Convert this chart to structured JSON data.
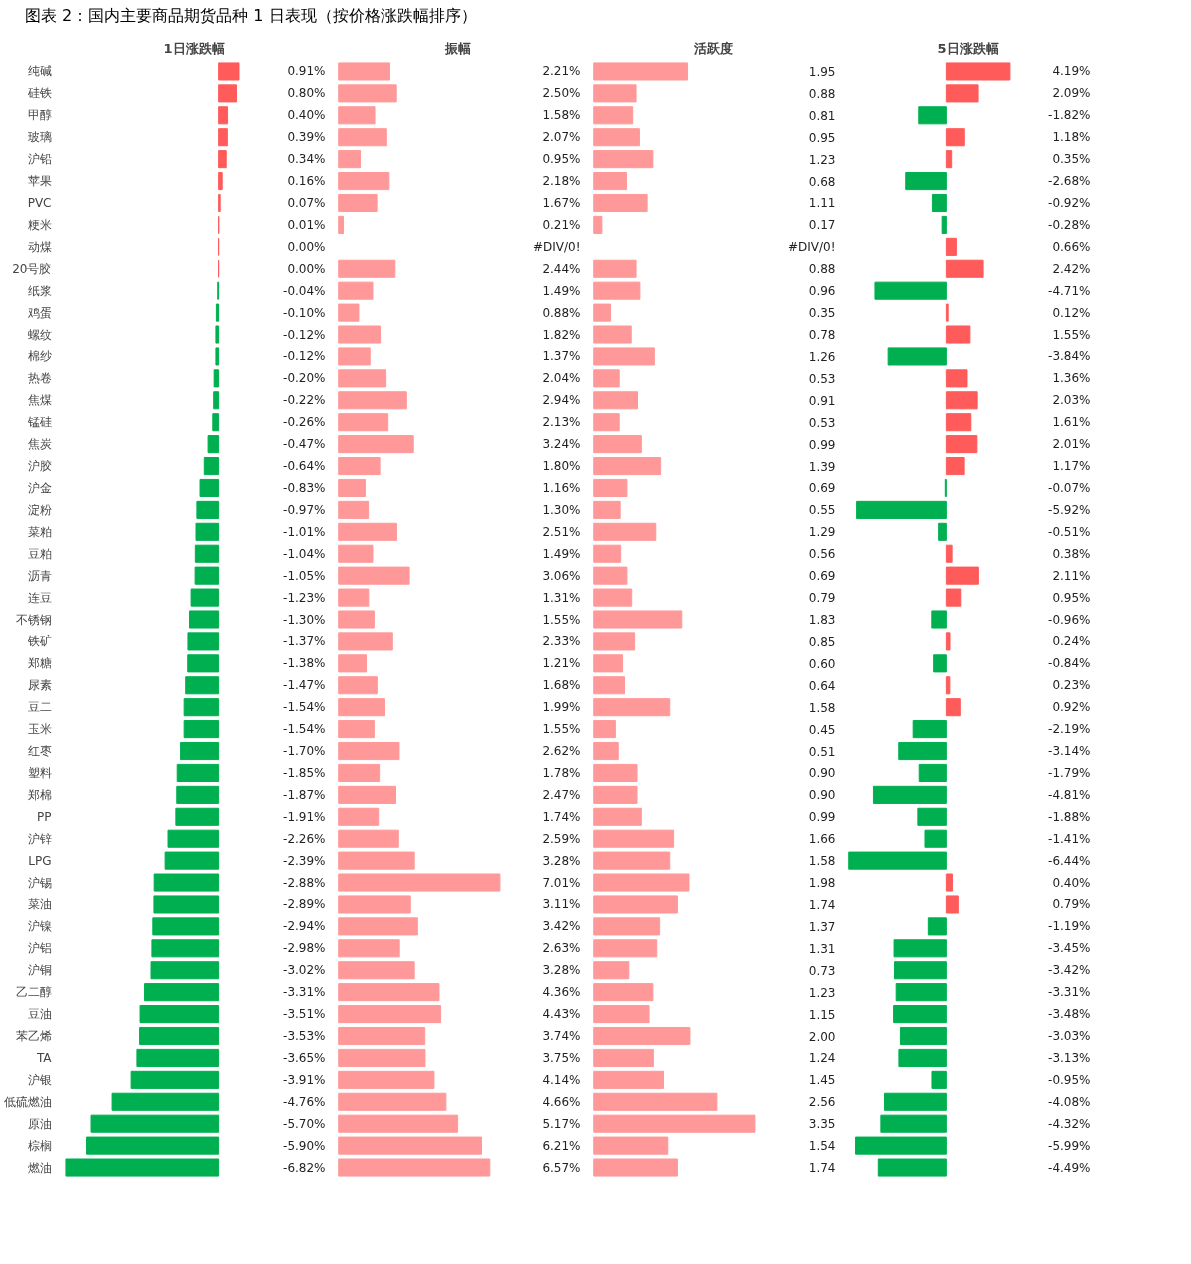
{
  "chart_data": [
    {
      "type": "bar",
      "orientation": "horizontal",
      "tick_labels": "y",
      "title": "图表 2：国内主要商品期货品种 1 日表现（按价格涨跌幅排序）",
      "subtitle": "1日涨跌幅",
      "categories": [
        "纯碱",
        "硅铁",
        "甲醇",
        "玻璃",
        "沪铅",
        "苹果",
        "PVC",
        "粳米",
        "动煤",
        "20号胶",
        "纸浆",
        "鸡蛋",
        "螺纹",
        "棉纱",
        "热卷",
        "焦煤",
        "锰硅",
        "焦炭",
        "沪胶",
        "沪金",
        "淀粉",
        "菜粕",
        "豆粕",
        "沥青",
        "连豆",
        "不锈钢",
        "铁矿",
        "郑糖",
        "尿素",
        "豆二",
        "玉米",
        "红枣",
        "塑料",
        "郑棉",
        "PP",
        "沪锌",
        "LPG",
        "沪锡",
        "菜油",
        "沪镍",
        "沪铝",
        "沪铜",
        "乙二醇",
        "豆油",
        "苯乙烯",
        "TA",
        "沪银",
        "低硫燃油",
        "原油",
        "棕榈",
        "燃油"
      ],
      "values": [
        0.91,
        0.8,
        0.4,
        0.39,
        0.34,
        0.16,
        0.07,
        0.01,
        0.0,
        0.0,
        -0.04,
        -0.1,
        -0.12,
        -0.12,
        -0.2,
        -0.22,
        -0.26,
        -0.47,
        -0.64,
        -0.83,
        -0.97,
        -1.01,
        -1.04,
        -1.05,
        -1.23,
        -1.3,
        -1.37,
        -1.38,
        -1.47,
        -1.54,
        -1.54,
        -1.7,
        -1.85,
        -1.87,
        -1.91,
        -2.26,
        -2.39,
        -2.88,
        -2.89,
        -2.94,
        -2.98,
        -3.02,
        -3.31,
        -3.51,
        -3.53,
        -3.65,
        -3.91,
        -4.76,
        -5.7,
        -5.9,
        -6.82
      ],
      "value_labels": [
        "0.91%",
        "0.80%",
        "0.40%",
        "0.39%",
        "0.34%",
        "0.16%",
        "0.07%",
        "0.01%",
        "0.00%",
        "0.00%",
        "-0.04%",
        "-0.10%",
        "-0.12%",
        "-0.12%",
        "-0.20%",
        "-0.22%",
        "-0.26%",
        "-0.47%",
        "-0.64%",
        "-0.83%",
        "-0.97%",
        "-1.01%",
        "-1.04%",
        "-1.05%",
        "-1.23%",
        "-1.30%",
        "-1.37%",
        "-1.38%",
        "-1.47%",
        "-1.54%",
        "-1.54%",
        "-1.70%",
        "-1.85%",
        "-1.87%",
        "-1.91%",
        "-2.26%",
        "-2.39%",
        "-2.88%",
        "-2.89%",
        "-2.94%",
        "-2.98%",
        "-3.02%",
        "-3.31%",
        "-3.51%",
        "-3.53%",
        "-3.65%",
        "-3.91%",
        "-4.76%",
        "-5.70%",
        "-5.90%",
        "-6.82%"
      ],
      "colors": [
        "#ff5b5b",
        "#ff5b5b",
        "#ff5b5b",
        "#ff5b5b",
        "#ff5b5b",
        "#ff5b5b",
        "#ff5b5b",
        "#ff5b5b",
        "#ff5b5b",
        "#ff5b5b",
        "#00b050",
        "#00b050",
        "#00b050",
        "#00b050",
        "#00b050",
        "#00b050",
        "#00b050",
        "#00b050",
        "#00b050",
        "#00b050",
        "#00b050",
        "#00b050",
        "#00b050",
        "#00b050",
        "#00b050",
        "#00b050",
        "#00b050",
        "#00b050",
        "#00b050",
        "#00b050",
        "#00b050",
        "#00b050",
        "#00b050",
        "#00b050",
        "#00b050",
        "#00b050",
        "#00b050",
        "#00b050",
        "#00b050",
        "#00b050",
        "#00b050",
        "#00b050",
        "#00b050",
        "#00b050",
        "#00b050",
        "#00b050",
        "#00b050",
        "#00b050",
        "#00b050",
        "#00b050",
        "#00b050"
      ]
    },
    {
      "type": "bar",
      "orientation": "horizontal",
      "tick_labels": false,
      "title": "振幅",
      "color": "#ff9999",
      "categories": [
        null,
        null,
        null,
        null,
        null,
        null,
        null,
        null,
        null,
        null,
        null,
        null,
        null,
        null,
        null,
        null,
        null,
        null,
        null,
        null,
        null,
        null,
        null,
        null,
        null,
        null,
        null,
        null,
        null,
        null,
        null,
        null,
        null,
        null,
        null,
        null,
        null,
        null,
        null,
        null,
        null,
        null,
        null,
        null,
        null,
        null,
        null,
        null,
        null,
        null,
        null
      ],
      "values": [
        2.21,
        2.5,
        1.58,
        2.07,
        0.95,
        2.18,
        1.67,
        0.21,
        null,
        2.44,
        1.49,
        0.88,
        1.82,
        1.37,
        2.04,
        2.94,
        2.13,
        3.24,
        1.8,
        1.16,
        1.3,
        2.51,
        1.49,
        3.06,
        1.31,
        1.55,
        2.33,
        1.21,
        1.68,
        1.99,
        1.55,
        2.62,
        1.78,
        2.47,
        1.74,
        2.59,
        3.28,
        7.01,
        3.11,
        3.42,
        2.63,
        3.28,
        4.36,
        4.43,
        3.74,
        3.75,
        4.14,
        4.66,
        5.17,
        6.21,
        6.57
      ],
      "value_labels": [
        "2.21%",
        "2.50%",
        "1.58%",
        "2.07%",
        "0.95%",
        "2.18%",
        "1.67%",
        "0.21%",
        "#DIV/0!",
        "2.44%",
        "1.49%",
        "0.88%",
        "1.82%",
        "1.37%",
        "2.04%",
        "2.94%",
        "2.13%",
        "3.24%",
        "1.80%",
        "1.16%",
        "1.30%",
        "2.51%",
        "1.49%",
        "3.06%",
        "1.31%",
        "1.55%",
        "2.33%",
        "1.21%",
        "1.68%",
        "1.99%",
        "1.55%",
        "2.62%",
        "1.78%",
        "2.47%",
        "1.74%",
        "2.59%",
        "3.28%",
        "7.01%",
        "3.11%",
        "3.42%",
        "2.63%",
        "3.28%",
        "4.36%",
        "4.43%",
        "3.74%",
        "3.75%",
        "4.14%",
        "4.66%",
        "5.17%",
        "6.21%",
        "6.57%"
      ]
    },
    {
      "type": "bar",
      "orientation": "horizontal",
      "tick_labels": false,
      "title": "活跃度",
      "color": "#ff9999",
      "categories": [
        null,
        null,
        null,
        null,
        null,
        null,
        null,
        null,
        null,
        null,
        null,
        null,
        null,
        null,
        null,
        null,
        null,
        null,
        null,
        null,
        null,
        null,
        null,
        null,
        null,
        null,
        null,
        null,
        null,
        null,
        null,
        null,
        null,
        null,
        null,
        null,
        null,
        null,
        null,
        null,
        null,
        null,
        null,
        null,
        null,
        null,
        null,
        null,
        null,
        null,
        null
      ],
      "values": [
        1.95,
        0.88,
        0.81,
        0.95,
        1.23,
        0.68,
        1.11,
        0.17,
        null,
        0.88,
        0.96,
        0.35,
        0.78,
        1.26,
        0.53,
        0.91,
        0.53,
        0.99,
        1.39,
        0.69,
        0.55,
        1.29,
        0.56,
        0.69,
        0.79,
        1.83,
        0.85,
        0.6,
        0.64,
        1.58,
        0.45,
        0.51,
        0.9,
        0.9,
        0.99,
        1.66,
        1.58,
        1.98,
        1.74,
        1.37,
        1.31,
        0.73,
        1.23,
        1.15,
        2.0,
        1.24,
        1.45,
        2.56,
        3.35,
        1.54,
        1.74
      ],
      "value_labels": [
        "1.95",
        "0.88",
        "0.81",
        "0.95",
        "1.23",
        "0.68",
        "1.11",
        "0.17",
        "#DIV/0!",
        "0.88",
        "0.96",
        "0.35",
        "0.78",
        "1.26",
        "0.53",
        "0.91",
        "0.53",
        "0.99",
        "1.39",
        "0.69",
        "0.55",
        "1.29",
        "0.56",
        "0.69",
        "0.79",
        "1.83",
        "0.85",
        "0.60",
        "0.64",
        "1.58",
        "0.45",
        "0.51",
        "0.90",
        "0.90",
        "0.99",
        "1.66",
        "1.58",
        "1.98",
        "1.74",
        "1.37",
        "1.31",
        "0.73",
        "1.23",
        "1.15",
        "2.00",
        "1.24",
        "1.45",
        "2.56",
        "3.35",
        "1.54",
        "1.74"
      ]
    },
    {
      "type": "bar",
      "orientation": "horizontal",
      "tick_labels": false,
      "title": "5日涨跌幅",
      "categories": [
        null,
        null,
        null,
        null,
        null,
        null,
        null,
        null,
        null,
        null,
        null,
        null,
        null,
        null,
        null,
        null,
        null,
        null,
        null,
        null,
        null,
        null,
        null,
        null,
        null,
        null,
        null,
        null,
        null,
        null,
        null,
        null,
        null,
        null,
        null,
        null,
        null,
        null,
        null,
        null,
        null,
        null,
        null,
        null,
        null,
        null,
        null,
        null,
        null,
        null,
        null
      ],
      "values": [
        4.19,
        2.09,
        -1.82,
        1.18,
        0.35,
        -2.68,
        -0.92,
        -0.28,
        0.66,
        2.42,
        -4.71,
        0.12,
        1.55,
        -3.84,
        1.36,
        2.03,
        1.61,
        2.01,
        1.17,
        -0.07,
        -5.92,
        -0.51,
        0.38,
        2.11,
        0.95,
        -0.96,
        0.24,
        -0.84,
        0.23,
        0.92,
        -2.19,
        -3.14,
        -1.79,
        -4.81,
        -1.88,
        -1.41,
        -6.44,
        0.4,
        0.79,
        -1.19,
        -3.45,
        -3.42,
        -3.31,
        -3.48,
        -3.03,
        -3.13,
        -0.95,
        -4.08,
        -4.32,
        -5.99,
        -4.49
      ],
      "value_labels": [
        "4.19%",
        "2.09%",
        "-1.82%",
        "1.18%",
        "0.35%",
        "-2.68%",
        "-0.92%",
        "-0.28%",
        "0.66%",
        "2.42%",
        "-4.71%",
        "0.12%",
        "1.55%",
        "-3.84%",
        "1.36%",
        "2.03%",
        "1.61%",
        "2.01%",
        "1.17%",
        "-0.07%",
        "-5.92%",
        "-0.51%",
        "0.38%",
        "2.11%",
        "0.95%",
        "-0.96%",
        "0.24%",
        "-0.84%",
        "0.23%",
        "0.92%",
        "-2.19%",
        "-3.14%",
        "-1.79%",
        "-4.81%",
        "-1.88%",
        "-1.41%",
        "-6.44%",
        "0.40%",
        "0.79%",
        "-1.19%",
        "-3.45%",
        "-3.42%",
        "-3.31%",
        "-3.48%",
        "-3.03%",
        "-3.13%",
        "-0.95%",
        "-4.08%",
        "-4.32%",
        "-5.99%",
        "-4.49%"
      ],
      "colors": [
        "#ff5b5b",
        "#ff5b5b",
        "#00b050",
        "#ff5b5b",
        "#ff5b5b",
        "#00b050",
        "#00b050",
        "#00b050",
        "#ff5b5b",
        "#ff5b5b",
        "#00b050",
        "#ff5b5b",
        "#ff5b5b",
        "#00b050",
        "#ff5b5b",
        "#ff5b5b",
        "#ff5b5b",
        "#ff5b5b",
        "#ff5b5b",
        "#00b050",
        "#00b050",
        "#00b050",
        "#ff5b5b",
        "#ff5b5b",
        "#ff5b5b",
        "#00b050",
        "#ff5b5b",
        "#00b050",
        "#ff5b5b",
        "#ff5b5b",
        "#00b050",
        "#00b050",
        "#00b050",
        "#00b050",
        "#00b050",
        "#00b050",
        "#00b050",
        "#ff5b5b",
        "#ff5b5b",
        "#00b050",
        "#00b050",
        "#00b050",
        "#00b050",
        "#00b050",
        "#00b050",
        "#00b050",
        "#00b050",
        "#00b050",
        "#00b050",
        "#00b050",
        "#00b050"
      ]
    }
  ]
}
